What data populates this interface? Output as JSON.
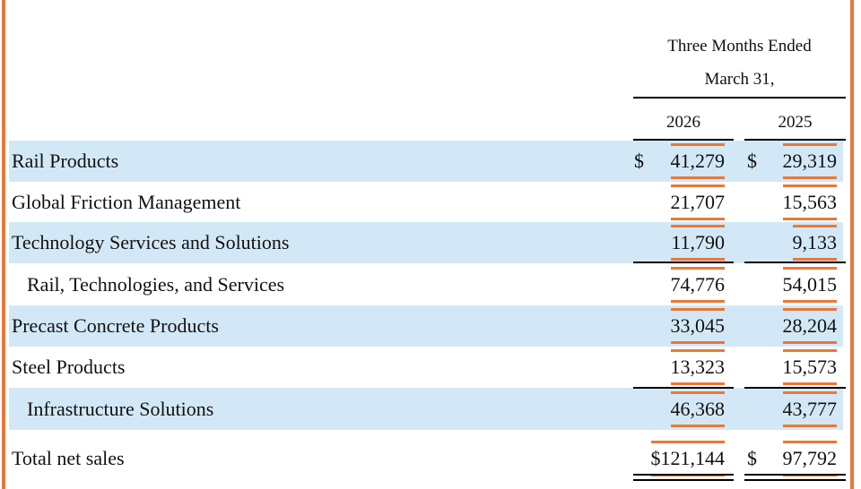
{
  "header": {
    "period": "Three Months Ended",
    "date": "March 31,",
    "years": [
      "2026",
      "2025"
    ]
  },
  "rows": [
    {
      "label": "Rail Products",
      "cells": [
        {
          "currency": "$",
          "value": "41,279"
        },
        {
          "currency": "$",
          "value": "29,319"
        }
      ]
    },
    {
      "label": "Global Friction Management",
      "cells": [
        {
          "value": "21,707"
        },
        {
          "value": "15,563"
        }
      ]
    },
    {
      "label": "Technology Services and Solutions",
      "cells": [
        {
          "value": "11,790"
        },
        {
          "value": "9,133"
        }
      ]
    },
    {
      "label": "Rail, Technologies, and Services",
      "cells": [
        {
          "value": "74,776"
        },
        {
          "value": "54,015"
        }
      ]
    },
    {
      "label": "Precast Concrete Products",
      "cells": [
        {
          "value": "33,045"
        },
        {
          "value": "28,204"
        }
      ]
    },
    {
      "label": "Steel Products",
      "cells": [
        {
          "value": "13,323"
        },
        {
          "value": "15,573"
        }
      ]
    },
    {
      "label": "Infrastructure Solutions",
      "cells": [
        {
          "value": "46,368"
        },
        {
          "value": "43,777"
        }
      ]
    },
    {
      "label": "Total net sales",
      "cells": [
        {
          "value": "$121,144"
        },
        {
          "currency": "$",
          "value": "97,792"
        }
      ]
    }
  ]
}
